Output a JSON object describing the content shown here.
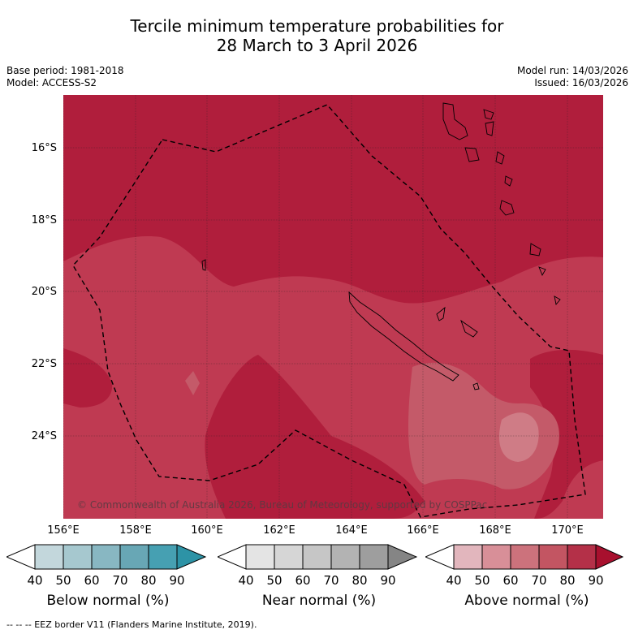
{
  "title": {
    "line1": "Tercile minimum temperature probabilities for",
    "line2": "28 March to 3 April 2026"
  },
  "meta": {
    "base_period": "Base period: 1981-2018",
    "model": "Model: ACCESS-S2",
    "model_run": "Model run: 14/03/2026",
    "issued": "Issued: 16/03/2026"
  },
  "map": {
    "lat_labels": [
      "16°S",
      "18°S",
      "20°S",
      "22°S",
      "24°S"
    ],
    "lon_labels": [
      "156°E",
      "158°E",
      "160°E",
      "162°E",
      "164°E",
      "166°E",
      "168°E",
      "170°E"
    ],
    "copyright": "© Commonwealth of Australia 2026, Bureau of Meteorology, supported by COSPPac",
    "colors": {
      "above_90": "#b01e3c",
      "above_80": "#bf3a52",
      "above_70": "#c45a69",
      "above_60": "#cf7c86"
    }
  },
  "colorbars": [
    {
      "name": "Below normal (%)",
      "ticks": [
        "40",
        "50",
        "60",
        "70",
        "80",
        "90"
      ],
      "colors": [
        "#ffffff",
        "#c3d7dc",
        "#a6c8cf",
        "#88b7c2",
        "#68a7b5",
        "#46a0b2",
        "#2d93a6"
      ]
    },
    {
      "name": "Near normal (%)",
      "ticks": [
        "40",
        "50",
        "60",
        "70",
        "80",
        "90"
      ],
      "colors": [
        "#ffffff",
        "#e4e4e4",
        "#d6d6d6",
        "#c6c6c6",
        "#b3b3b3",
        "#9e9e9e",
        "#858585"
      ]
    },
    {
      "name": "Above normal (%)",
      "ticks": [
        "40",
        "50",
        "60",
        "70",
        "80",
        "90"
      ],
      "colors": [
        "#ffffff",
        "#e2b6bd",
        "#d88f98",
        "#cc727c",
        "#c35562",
        "#b43048",
        "#a8102e"
      ]
    }
  ],
  "footer": "--  --  -- EEZ border V11 (Flanders Marine Institute, 2019)."
}
